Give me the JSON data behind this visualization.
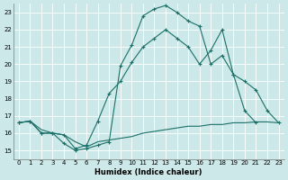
{
  "background_color": "#cde8e8",
  "grid_color": "#b8d8d8",
  "line_color": "#1a7068",
  "xlabel": "Humidex (Indice chaleur)",
  "xlim": [
    -0.5,
    23.5
  ],
  "ylim": [
    14.5,
    23.5
  ],
  "yticks": [
    15,
    16,
    17,
    18,
    19,
    20,
    21,
    22,
    23
  ],
  "xticks": [
    0,
    1,
    2,
    3,
    4,
    5,
    6,
    7,
    8,
    9,
    10,
    11,
    12,
    13,
    14,
    15,
    16,
    17,
    18,
    19,
    20,
    21,
    22,
    23
  ],
  "series1_x": [
    0,
    1,
    2,
    3,
    4,
    5,
    6,
    7,
    8,
    9,
    10,
    11,
    12,
    13,
    14,
    15,
    16,
    17,
    18,
    19,
    20,
    21,
    22,
    23
  ],
  "series1_y": [
    16.6,
    16.7,
    16.2,
    16.0,
    15.9,
    15.5,
    15.2,
    15.5,
    15.6,
    15.7,
    15.8,
    16.0,
    16.1,
    16.2,
    16.3,
    16.4,
    16.4,
    16.5,
    16.5,
    16.6,
    16.6,
    16.65,
    16.65,
    16.6
  ],
  "series2_x": [
    0,
    1,
    2,
    3,
    4,
    5,
    6,
    7,
    8,
    9,
    10,
    11,
    12,
    13,
    14,
    15,
    16,
    17,
    18,
    19,
    20,
    21,
    22,
    23
  ],
  "series2_y": [
    16.6,
    16.7,
    16.0,
    16.0,
    15.4,
    15.0,
    15.1,
    15.3,
    15.5,
    19.9,
    21.1,
    22.8,
    23.2,
    23.4,
    23.0,
    22.5,
    22.2,
    20.0,
    20.5,
    19.4,
    19.0,
    18.5,
    17.3,
    16.6
  ],
  "series3_x": [
    0,
    1,
    2,
    3,
    4,
    5,
    6,
    7,
    8,
    9,
    10,
    11,
    12,
    13,
    14,
    15,
    16,
    17,
    18,
    19,
    20,
    21
  ],
  "series3_y": [
    16.6,
    16.7,
    16.0,
    16.0,
    15.9,
    15.1,
    15.3,
    16.7,
    18.3,
    19.0,
    20.1,
    21.0,
    21.5,
    22.0,
    21.5,
    21.0,
    20.0,
    20.8,
    22.0,
    19.4,
    17.3,
    16.6
  ]
}
